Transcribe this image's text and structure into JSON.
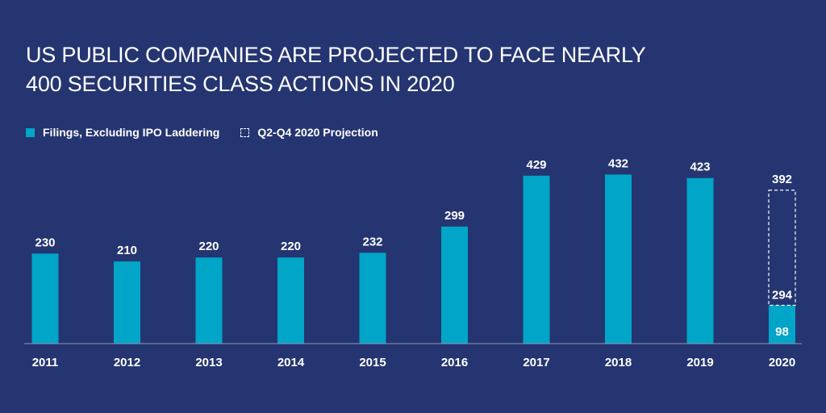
{
  "title_lines": [
    "US PUBLIC COMPANIES ARE PROJECTED TO FACE NEARLY",
    "400 SECURITIES CLASS ACTIONS IN 2020"
  ],
  "legend": {
    "filings_label": "Filings, Excluding IPO Laddering",
    "projection_label": "Q2-Q4 2020 Projection"
  },
  "colors": {
    "background": "#253571",
    "bar": "#00a5c8",
    "projection_outline": "#ffffff"
  },
  "chart_data": {
    "type": "bar",
    "categories": [
      "2011",
      "2012",
      "2013",
      "2014",
      "2015",
      "2016",
      "2017",
      "2018",
      "2019",
      "2020"
    ],
    "series": [
      {
        "name": "Filings, Excluding IPO Laddering",
        "values": [
          230,
          210,
          220,
          220,
          232,
          299,
          429,
          432,
          423,
          98
        ]
      },
      {
        "name": "Q2-Q4 2020 Projection",
        "values": [
          null,
          null,
          null,
          null,
          null,
          null,
          null,
          null,
          null,
          294
        ]
      }
    ],
    "stacked": true,
    "total_labels": [
      null,
      null,
      null,
      null,
      null,
      null,
      null,
      null,
      null,
      392
    ],
    "title": "US PUBLIC COMPANIES ARE PROJECTED TO FACE NEARLY 400 SECURITIES CLASS ACTIONS IN 2020",
    "xlabel": "",
    "ylabel": "",
    "ylim": [
      0,
      450
    ],
    "grid": false,
    "legend_position": "top-left"
  }
}
